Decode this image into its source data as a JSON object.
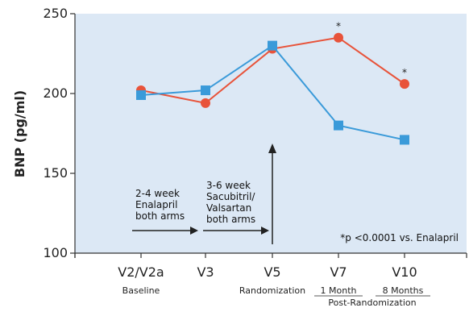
{
  "chart_data": {
    "type": "line",
    "ylabel": "BNP (pg/ml)",
    "ylim": [
      100,
      250
    ],
    "yticks": [
      100,
      150,
      200,
      250
    ],
    "categories": [
      "V2/V2a",
      "V3",
      "V5",
      "V7",
      "V10"
    ],
    "series": [
      {
        "color": "#e8533a",
        "marker": "circle",
        "values": [
          202,
          194,
          228,
          235,
          206
        ],
        "markers": [
          "",
          "",
          "",
          "*",
          "*"
        ]
      },
      {
        "color": "#3a9ad9",
        "marker": "square",
        "values": [
          199,
          202,
          230,
          180,
          171
        ]
      }
    ],
    "category_sublabels": {
      "baseline": "Baseline",
      "randomization": "Randomization",
      "one_month": "1 Month",
      "eight_months": "8 Months",
      "post_randomization": "Post-Randomization"
    },
    "annotations": {
      "phase1": [
        "2-4 week",
        "Enalapril",
        "both arms"
      ],
      "phase2": [
        "3-6 week",
        "Sacubitril/",
        "Valsartan",
        "both arms"
      ],
      "footnote": "*p <0.0001 vs. Enalapril"
    },
    "grid": false,
    "background": "#dce8f5"
  }
}
